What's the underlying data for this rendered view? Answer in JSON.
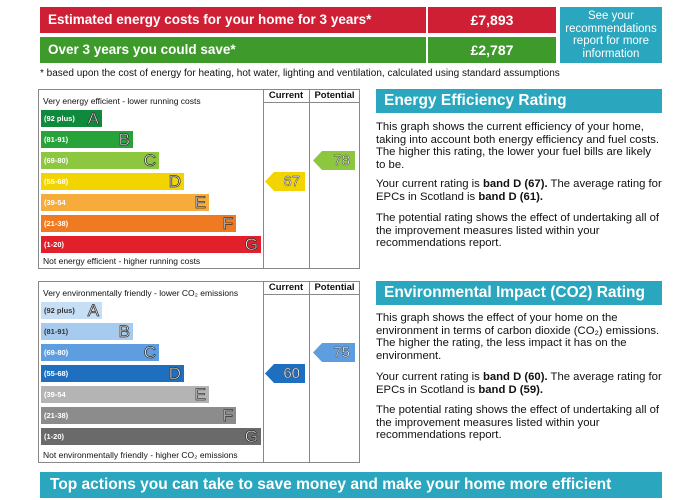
{
  "costs": {
    "estimated_label": "Estimated energy costs for your home for 3 years*",
    "estimated_value": "£7,893",
    "save_label": "Over 3 years you could save*",
    "save_value": "£2,787",
    "see_box": "See your recommendations report for more information",
    "footnote": "* based upon the cost of energy for heating, hot water, lighting and ventilation, calculated using standard assumptions"
  },
  "energy_chart": {
    "top_label": "Very energy efficient - lower running costs",
    "bottom_label": "Not energy efficient - higher running costs",
    "col_current": "Current",
    "col_potential": "Potential",
    "bands": [
      {
        "range": "(92 plus)",
        "letter": "A",
        "color": "#0f8a3c"
      },
      {
        "range": "(81-91)",
        "letter": "B",
        "color": "#27a33a"
      },
      {
        "range": "(69-80)",
        "letter": "C",
        "color": "#8dc63f"
      },
      {
        "range": "(55-68)",
        "letter": "D",
        "color": "#f2d400"
      },
      {
        "range": "(39-54",
        "letter": "E",
        "color": "#f6ab3a"
      },
      {
        "range": "(21-38)",
        "letter": "F",
        "color": "#ef7a22"
      },
      {
        "range": "(1-20)",
        "letter": "G",
        "color": "#e2202b"
      }
    ],
    "current": "67",
    "potential": "78",
    "current_color": "#f2d400",
    "potential_color": "#8dc63f"
  },
  "co2_chart": {
    "top_label": "Very environmentally friendly - lower CO₂ emissions",
    "bottom_label": "Not environmentally friendly - higher CO₂ emissions",
    "col_current": "Current",
    "col_potential": "Potential",
    "bands": [
      {
        "range": "(92 plus)",
        "letter": "A",
        "color": "#c7dff5"
      },
      {
        "range": "(81-91)",
        "letter": "B",
        "color": "#a7cbee"
      },
      {
        "range": "(69-80)",
        "letter": "C",
        "color": "#5d9de0"
      },
      {
        "range": "(55-68)",
        "letter": "D",
        "color": "#1e6fbf"
      },
      {
        "range": "(39-54",
        "letter": "E",
        "color": "#b4b4b4"
      },
      {
        "range": "(21-38)",
        "letter": "F",
        "color": "#8c8c8c"
      },
      {
        "range": "(1-20)",
        "letter": "G",
        "color": "#6a6a6a"
      }
    ],
    "current": "60",
    "potential": "75",
    "current_color": "#1e6fbf",
    "potential_color": "#5d9de0"
  },
  "eer": {
    "heading": "Energy Efficiency Rating",
    "p1": "This graph shows the current efficiency of your home, taking into account both energy efficiency and fuel costs. The higher this rating, the lower your fuel bills are likely to be.",
    "p2a": "Your current rating is ",
    "p2b": "band D (67).",
    "p2c": " The average rating for EPCs in Scotland is ",
    "p2d": "band D (61).",
    "p3": "The potential rating shows the effect of undertaking all of the improvement measures listed within your recommendations report."
  },
  "eir": {
    "heading": "Environmental Impact (CO2) Rating",
    "p1": "This graph shows the effect of your home on the environment in terms of carbon dioxide (CO₂) emissions. The higher the rating, the less impact it has on the environment.",
    "p2a": "Your current rating is ",
    "p2b": "band D (60).",
    "p2c": " The average rating for EPCs in Scotland is ",
    "p2d": "band D (59).",
    "p3": "The potential rating shows the effect of undertaking all of the improvement measures listed within your recommendations report."
  },
  "bottom_heading": "Top actions you can take to save money and make your home more efficient"
}
